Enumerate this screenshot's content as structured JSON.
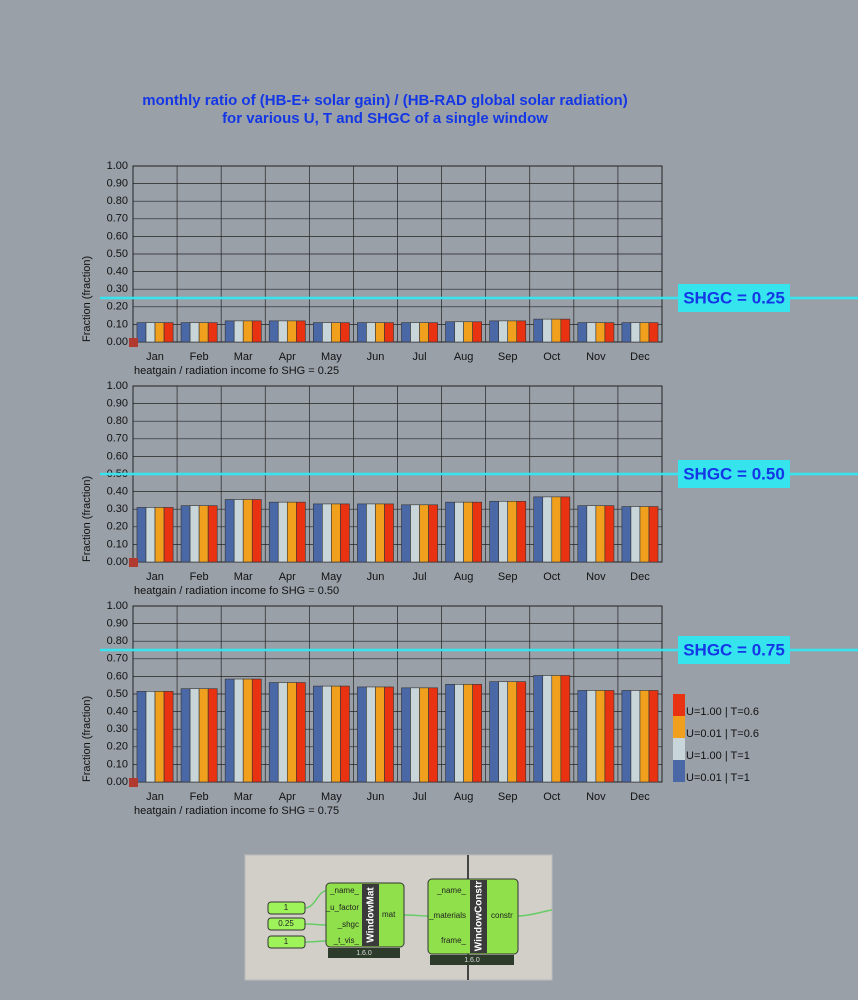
{
  "title": {
    "line1": "monthly ratio of (HB-E+ solar gain) / (HB-RAD global solar radiation)",
    "line2": "for various U, T and SHGC of a single window"
  },
  "chart_data": [
    {
      "type": "bar",
      "y_label": "Fraction (fraction)",
      "subtitle": "heatgain / radiation income fo SHG = 0.25",
      "categories": [
        "Jan",
        "Feb",
        "Mar",
        "Apr",
        "May",
        "Jun",
        "Jul",
        "Aug",
        "Sep",
        "Oct",
        "Nov",
        "Dec"
      ],
      "series": [
        {
          "color": "#4a68a6",
          "values": [
            0.11,
            0.11,
            0.12,
            0.12,
            0.11,
            0.11,
            0.11,
            0.115,
            0.12,
            0.13,
            0.11,
            0.11
          ]
        },
        {
          "color": "#c8d6da",
          "values": [
            0.11,
            0.11,
            0.12,
            0.12,
            0.11,
            0.11,
            0.11,
            0.115,
            0.12,
            0.13,
            0.11,
            0.11
          ]
        },
        {
          "color": "#f0a01c",
          "values": [
            0.11,
            0.11,
            0.12,
            0.12,
            0.11,
            0.11,
            0.11,
            0.115,
            0.12,
            0.13,
            0.11,
            0.11
          ]
        },
        {
          "color": "#e83212",
          "values": [
            0.11,
            0.11,
            0.12,
            0.12,
            0.11,
            0.11,
            0.11,
            0.115,
            0.12,
            0.13,
            0.11,
            0.11
          ]
        }
      ],
      "ylim": [
        0,
        1
      ],
      "yticks": [
        {
          "value": 0,
          "label": "0.00"
        },
        {
          "value": 0.1,
          "label": "0.10"
        },
        {
          "value": 0.2,
          "label": "0.20"
        },
        {
          "value": 0.3,
          "label": "0.30"
        },
        {
          "value": 0.4,
          "label": "0.40"
        },
        {
          "value": 0.5,
          "label": "0.50"
        },
        {
          "value": 0.6,
          "label": "0.60"
        },
        {
          "value": 0.7,
          "label": "0.70"
        },
        {
          "value": 0.8,
          "label": "0.80"
        },
        {
          "value": 0.9,
          "label": "0.90"
        },
        {
          "value": 1,
          "label": "1.00"
        }
      ],
      "grid": true,
      "reference": {
        "value": 0.25,
        "label": "SHGC = 0.25",
        "color": "#36e4ee"
      }
    },
    {
      "type": "bar",
      "y_label": "Fraction (fraction)",
      "subtitle": "heatgain / radiation income fo SHG = 0.50",
      "categories": [
        "Jan",
        "Feb",
        "Mar",
        "Apr",
        "May",
        "Jun",
        "Jul",
        "Aug",
        "Sep",
        "Oct",
        "Nov",
        "Dec"
      ],
      "series": [
        {
          "color": "#4a68a6",
          "values": [
            0.31,
            0.32,
            0.355,
            0.34,
            0.33,
            0.33,
            0.325,
            0.34,
            0.345,
            0.37,
            0.32,
            0.315
          ]
        },
        {
          "color": "#c8d6da",
          "values": [
            0.31,
            0.32,
            0.355,
            0.34,
            0.33,
            0.33,
            0.325,
            0.34,
            0.345,
            0.37,
            0.32,
            0.315
          ]
        },
        {
          "color": "#f0a01c",
          "values": [
            0.31,
            0.32,
            0.355,
            0.34,
            0.33,
            0.33,
            0.325,
            0.34,
            0.345,
            0.37,
            0.32,
            0.315
          ]
        },
        {
          "color": "#e83212",
          "values": [
            0.31,
            0.32,
            0.355,
            0.34,
            0.33,
            0.33,
            0.325,
            0.34,
            0.345,
            0.37,
            0.32,
            0.315
          ]
        }
      ],
      "ylim": [
        0,
        1
      ],
      "yticks": [
        {
          "value": 0,
          "label": "0.00"
        },
        {
          "value": 0.1,
          "label": "0.10"
        },
        {
          "value": 0.2,
          "label": "0.20"
        },
        {
          "value": 0.3,
          "label": "0.30"
        },
        {
          "value": 0.4,
          "label": "0.40"
        },
        {
          "value": 0.5,
          "label": "0.50"
        },
        {
          "value": 0.6,
          "label": "0.60"
        },
        {
          "value": 0.7,
          "label": "0.70"
        },
        {
          "value": 0.8,
          "label": "0.80"
        },
        {
          "value": 0.9,
          "label": "0.90"
        },
        {
          "value": 1,
          "label": "1.00"
        }
      ],
      "grid": true,
      "reference": {
        "value": 0.5,
        "label": "SHGC = 0.50",
        "color": "#36e4ee"
      }
    },
    {
      "type": "bar",
      "y_label": "Fraction (fraction)",
      "subtitle": "heatgain / radiation income fo SHG = 0.75",
      "categories": [
        "Jan",
        "Feb",
        "Mar",
        "Apr",
        "May",
        "Jun",
        "Jul",
        "Aug",
        "Sep",
        "Oct",
        "Nov",
        "Dec"
      ],
      "series": [
        {
          "name": "U=0.01 | T=1",
          "color": "#4a68a6",
          "values": [
            0.515,
            0.53,
            0.585,
            0.565,
            0.545,
            0.54,
            0.535,
            0.555,
            0.57,
            0.605,
            0.52,
            0.52
          ]
        },
        {
          "name": "U=1.00 | T=1",
          "color": "#c8d6da",
          "values": [
            0.515,
            0.53,
            0.585,
            0.565,
            0.545,
            0.54,
            0.535,
            0.555,
            0.57,
            0.605,
            0.52,
            0.52
          ]
        },
        {
          "name": "U=0.01 | T=0.6",
          "color": "#f0a01c",
          "values": [
            0.515,
            0.53,
            0.585,
            0.565,
            0.545,
            0.54,
            0.535,
            0.555,
            0.57,
            0.605,
            0.52,
            0.52
          ]
        },
        {
          "name": "U=1.00 | T=0.6",
          "color": "#e83212",
          "values": [
            0.515,
            0.53,
            0.585,
            0.565,
            0.545,
            0.54,
            0.535,
            0.555,
            0.57,
            0.605,
            0.52,
            0.52
          ]
        }
      ],
      "ylim": [
        0,
        1
      ],
      "yticks": [
        {
          "value": 0,
          "label": "0.00"
        },
        {
          "value": 0.1,
          "label": "0.10"
        },
        {
          "value": 0.2,
          "label": "0.20"
        },
        {
          "value": 0.3,
          "label": "0.30"
        },
        {
          "value": 0.4,
          "label": "0.40"
        },
        {
          "value": 0.5,
          "label": "0.50"
        },
        {
          "value": 0.6,
          "label": "0.60"
        },
        {
          "value": 0.7,
          "label": "0.70"
        },
        {
          "value": 0.8,
          "label": "0.80"
        },
        {
          "value": 0.9,
          "label": "0.90"
        },
        {
          "value": 1,
          "label": "1.00"
        }
      ],
      "grid": true,
      "legend": "right",
      "reference": {
        "value": 0.75,
        "label": "SHGC = 0.75",
        "color": "#36e4ee"
      }
    }
  ],
  "diagram": {
    "panels": [
      "1",
      "0.25",
      "1"
    ],
    "components": [
      {
        "name": "WindowMat",
        "inputs": [
          "_name_",
          "_u_factor",
          "_shgc",
          "_t_vis_"
        ],
        "outputs": [
          "mat"
        ],
        "version": "1.6.0"
      },
      {
        "name": "WindowConstr",
        "inputs": [
          "_name_",
          "_materials",
          "frame_"
        ],
        "outputs": [
          "constr"
        ],
        "version": "1.6.0"
      }
    ]
  }
}
